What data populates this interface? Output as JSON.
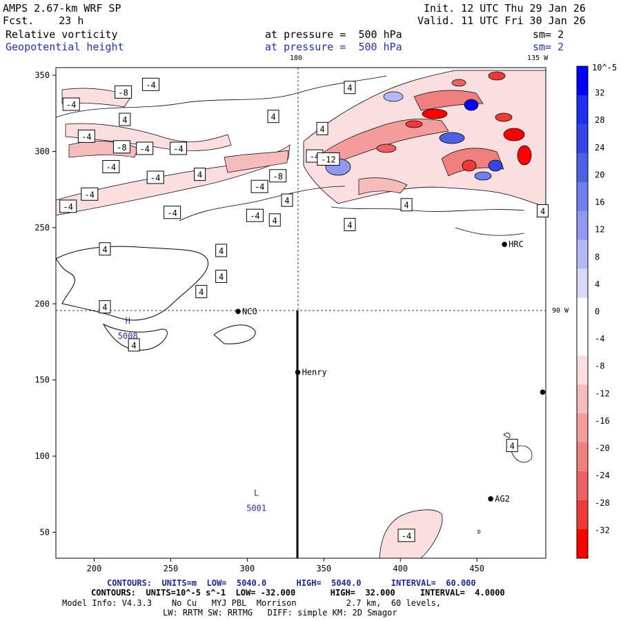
{
  "header": {
    "model": "AMPS 2.67-km WRF SP",
    "fcst": "Fcst.    23 h",
    "init": "Init. 12 UTC Thu 29 Jan 26",
    "valid": "Valid. 11 UTC Fri 30 Jan 26",
    "field1": "Relative vorticity",
    "field1_level": "at pressure =  500 hPa",
    "field1_sm": "sm= 2",
    "field2": "Geopotential height",
    "field2_level": "at pressure =  500 hPa",
    "field2_sm": "sm= 2"
  },
  "map": {
    "lon_top_180": "180",
    "lon_top_135w": "135 W",
    "lon_right_90w": "90 W",
    "x_ticks": [
      "200",
      "250",
      "300",
      "350",
      "400",
      "450"
    ],
    "x_tick_values": [
      200,
      250,
      300,
      350,
      400,
      450
    ],
    "y_ticks": [
      "350",
      "300",
      "250",
      "200",
      "150",
      "100",
      "50"
    ],
    "y_tick_values": [
      350,
      300,
      250,
      200,
      150,
      100,
      50
    ],
    "x_range": [
      175,
      495
    ],
    "y_range": [
      33,
      355
    ],
    "stations": [
      {
        "name": "NCO",
        "x": 294,
        "y": 195
      },
      {
        "name": "Henry",
        "x": 333,
        "y": 155
      },
      {
        "name": "HRC",
        "x": 468,
        "y": 239
      },
      {
        "name": "AG2",
        "x": 459,
        "y": 72
      },
      {
        "name": "",
        "x": 493,
        "y": 142
      }
    ],
    "high": {
      "letter": "H",
      "value": "5008",
      "x": 222,
      "y": 187
    },
    "low": {
      "letter": "L",
      "value": "5001",
      "x": 306,
      "y": 74
    },
    "contour_labels": [
      {
        "text": "-8",
        "x": 219,
        "y": 339
      },
      {
        "text": "-4",
        "x": 237,
        "y": 344
      },
      {
        "text": "-4",
        "x": 185,
        "y": 331
      },
      {
        "text": "4",
        "x": 220,
        "y": 321
      },
      {
        "text": "-4",
        "x": 195,
        "y": 310
      },
      {
        "text": "-8",
        "x": 218,
        "y": 303
      },
      {
        "text": "-4",
        "x": 233,
        "y": 302
      },
      {
        "text": "-4",
        "x": 255,
        "y": 302
      },
      {
        "text": "-4",
        "x": 211,
        "y": 290
      },
      {
        "text": "-4",
        "x": 240,
        "y": 283
      },
      {
        "text": "4",
        "x": 269,
        "y": 285
      },
      {
        "text": "-4",
        "x": 197,
        "y": 272
      },
      {
        "text": "-4",
        "x": 183,
        "y": 264
      },
      {
        "text": "-4",
        "x": 251,
        "y": 260
      },
      {
        "text": "-4",
        "x": 308,
        "y": 277
      },
      {
        "text": "-8",
        "x": 320,
        "y": 284
      },
      {
        "text": "-4",
        "x": 344,
        "y": 297
      },
      {
        "text": "4",
        "x": 317,
        "y": 323
      },
      {
        "text": "4",
        "x": 349,
        "y": 315
      },
      {
        "text": "4",
        "x": 367,
        "y": 342
      },
      {
        "text": "-12",
        "x": 353,
        "y": 295
      },
      {
        "text": "4",
        "x": 326,
        "y": 268
      },
      {
        "text": "-4",
        "x": 305,
        "y": 258
      },
      {
        "text": "4",
        "x": 318,
        "y": 255
      },
      {
        "text": "4",
        "x": 367,
        "y": 252
      },
      {
        "text": "4",
        "x": 404,
        "y": 265
      },
      {
        "text": "4",
        "x": 493,
        "y": 261
      },
      {
        "text": "4",
        "x": 207,
        "y": 236
      },
      {
        "text": "4",
        "x": 283,
        "y": 235
      },
      {
        "text": "4",
        "x": 283,
        "y": 218
      },
      {
        "text": "4",
        "x": 270,
        "y": 208
      },
      {
        "text": "4",
        "x": 207,
        "y": 198
      },
      {
        "text": "4",
        "x": 226,
        "y": 173
      },
      {
        "text": "4",
        "x": 473,
        "y": 107
      },
      {
        "text": "-4",
        "x": 404,
        "y": 48
      }
    ]
  },
  "colorbar": {
    "unit": "10^-5 s^-1",
    "ticks": [
      "32",
      "28",
      "24",
      "20",
      "16",
      "12",
      "8",
      "4",
      "0",
      "-4",
      "-8",
      "-12",
      "-16",
      "-20",
      "-24",
      "-28",
      "-32"
    ],
    "tick_values": [
      32,
      28,
      24,
      20,
      16,
      12,
      8,
      4,
      0,
      -4,
      -8,
      -12,
      -16,
      -20,
      -24,
      -28,
      -32
    ],
    "colors": [
      "#0000ff",
      "#2030f2",
      "#3545e6",
      "#5060e6",
      "#6f7feb",
      "#9099ef",
      "#b3b9f4",
      "#d7dbfa",
      "#ffffff",
      "#ffffff",
      "#fbdede",
      "#f6bcbc",
      "#f29c9c",
      "#ef8080",
      "#eb6060",
      "#f03a3a",
      "#ff0000"
    ]
  },
  "footer": {
    "contours1": "CONTOURS:  UNITS=m  LOW=  5040.0      HIGH=  5040.0      INTERVAL=  60.000",
    "contours2": "CONTOURS:  UNITS=10^-5 s^-1  LOW= -32.000       HIGH=  32.000     INTERVAL=  4.0000",
    "info1": "Model Info: V4.3.3    No Cu   MYJ PBL  Morrison          2.7 km,  60 levels,",
    "info2": "LW: RRTM SW: RRTMG   DIFF: simple KM: 2D Smagor"
  }
}
